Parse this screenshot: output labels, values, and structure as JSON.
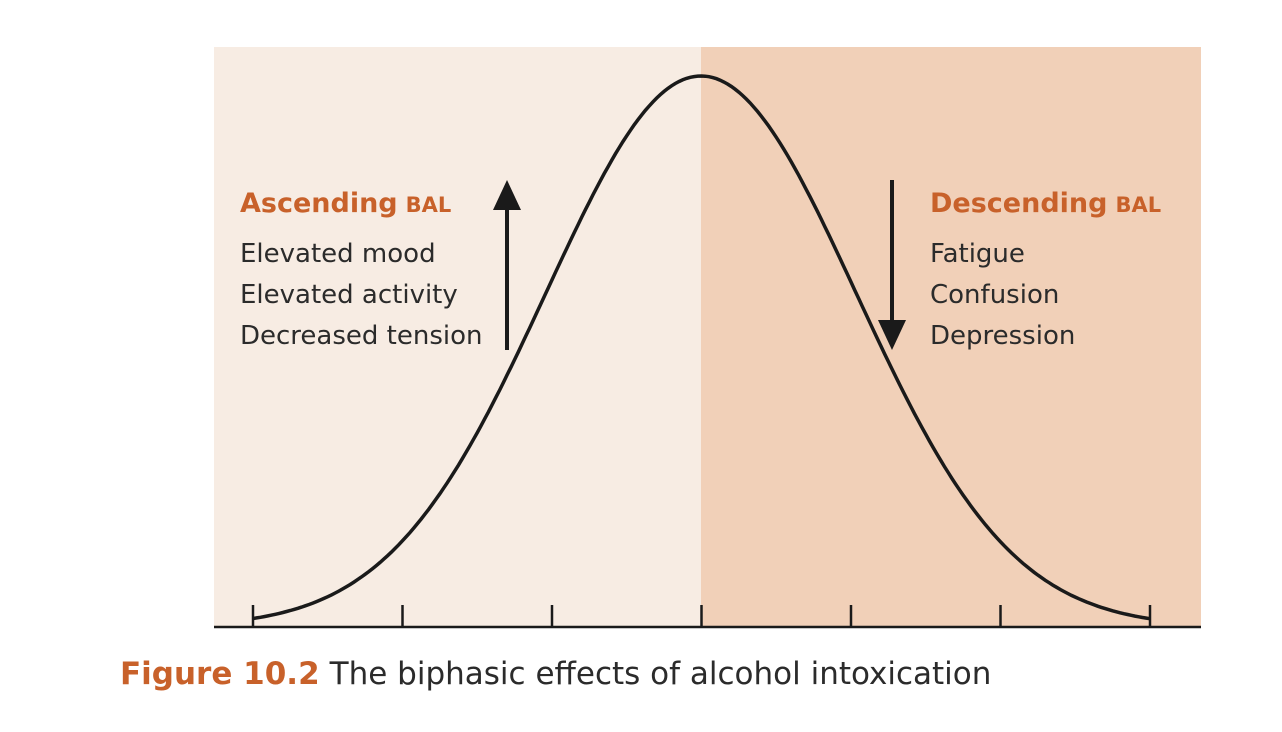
{
  "colors": {
    "left_panel": "#f7ece3",
    "right_panel": "#f1d0b8",
    "accent": "#c8612a",
    "ink": "#1a1a1a",
    "text": "#2b2b2b"
  },
  "ascending": {
    "heading": "Ascending",
    "abbr": "BAL",
    "effects": [
      "Elevated mood",
      "Elevated activity",
      "Decreased tension"
    ],
    "arrow_icon": "arrow-up-icon"
  },
  "descending": {
    "heading": "Descending",
    "abbr": "BAL",
    "effects": [
      "Fatigue",
      "Confusion",
      "Depression"
    ],
    "arrow_icon": "arrow-down-icon"
  },
  "axis": {
    "tick_count": 7
  },
  "caption": {
    "figure_number": "Figure 10.2",
    "text": "The biphasic effects of alcohol intoxication"
  }
}
